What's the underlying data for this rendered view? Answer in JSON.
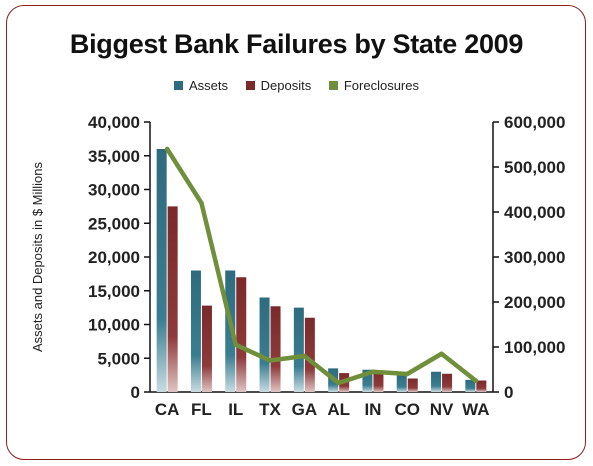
{
  "chart_data": {
    "type": "bar",
    "title": "Biggest Bank Failures by State 2009",
    "ylabel": "Assets and Deposits in $ Millions",
    "y2label": "",
    "categories": [
      "CA",
      "FL",
      "IL",
      "TX",
      "GA",
      "AL",
      "IN",
      "CO",
      "NV",
      "WA"
    ],
    "ylim": [
      0,
      40000
    ],
    "y2lim": [
      0,
      600000
    ],
    "yticks": [
      "0",
      "5,000",
      "10,000",
      "15,000",
      "20,000",
      "25,000",
      "30,000",
      "35,000",
      "40,000"
    ],
    "y2ticks": [
      "0",
      "100,000",
      "200,000",
      "300,000",
      "400,000",
      "500,000",
      "600,000"
    ],
    "series": [
      {
        "name": "Assets",
        "type": "bar",
        "axis": "left",
        "color": "#2e6b7e",
        "values": [
          36000,
          18000,
          18000,
          14000,
          12500,
          3500,
          3300,
          2500,
          3000,
          1800
        ]
      },
      {
        "name": "Deposits",
        "type": "bar",
        "axis": "left",
        "color": "#7a2a2a",
        "values": [
          27500,
          12800,
          17000,
          12700,
          11000,
          2800,
          3000,
          2000,
          2700,
          1700
        ]
      },
      {
        "name": "Foreclosures",
        "type": "line",
        "axis": "right",
        "color": "#6f8f3a",
        "values": [
          540000,
          420000,
          105000,
          70000,
          80000,
          20000,
          45000,
          40000,
          85000,
          25000
        ]
      }
    ],
    "legend_position": "top",
    "grid": false
  }
}
